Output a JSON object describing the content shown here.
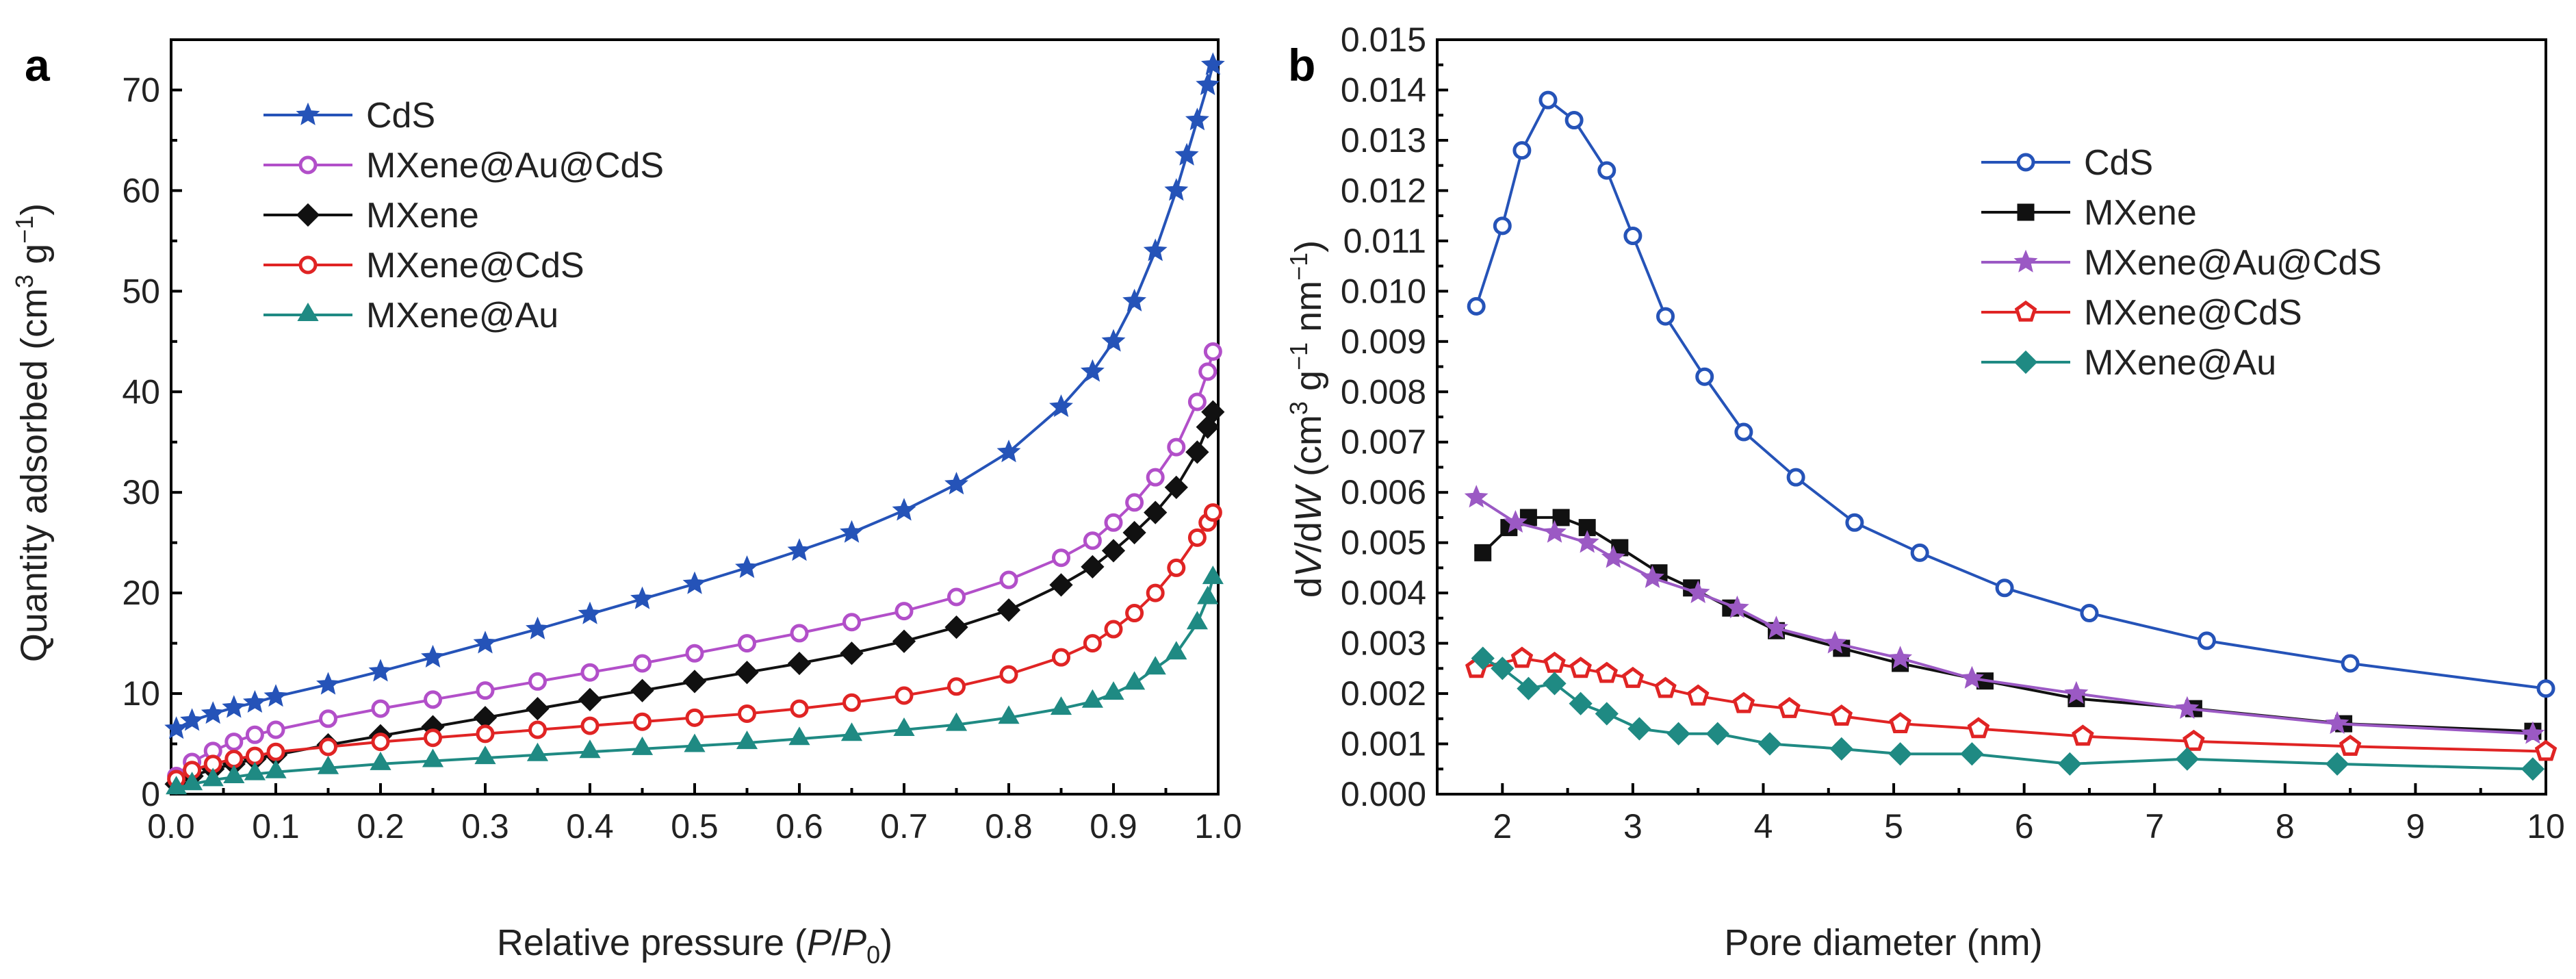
{
  "chart_data": [
    {
      "panel_label": "a",
      "type": "line",
      "xlabel": {
        "pre": "Relative pressure (",
        "p": "P",
        "slash": "/",
        "p0": "P",
        "sub": "0",
        "post": ")"
      },
      "ylabel": {
        "pre": "Quantity adsorbed (cm",
        "sup1": "3",
        "mid": " g",
        "sup2": "−1",
        "post": ")"
      },
      "xlim": [
        0.0,
        1.0
      ],
      "ylim": [
        0,
        75
      ],
      "xticks": [
        "0.0",
        "0.1",
        "0.2",
        "0.3",
        "0.4",
        "0.5",
        "0.6",
        "0.7",
        "0.8",
        "0.9",
        "1.0"
      ],
      "yticks": [
        "0",
        "10",
        "20",
        "30",
        "40",
        "50",
        "60",
        "70"
      ],
      "legend_position": "top-left",
      "series": [
        {
          "name": "CdS",
          "color": "#2553b8",
          "marker": "star",
          "x": [
            0.005,
            0.02,
            0.04,
            0.06,
            0.08,
            0.1,
            0.15,
            0.2,
            0.25,
            0.3,
            0.35,
            0.4,
            0.45,
            0.5,
            0.55,
            0.6,
            0.65,
            0.7,
            0.75,
            0.8,
            0.85,
            0.88,
            0.9,
            0.92,
            0.94,
            0.96,
            0.97,
            0.98,
            0.99,
            0.995
          ],
          "y": [
            6.5,
            7.3,
            8.0,
            8.6,
            9.1,
            9.7,
            10.9,
            12.2,
            13.6,
            15.0,
            16.4,
            17.9,
            19.4,
            20.9,
            22.5,
            24.2,
            26.0,
            28.2,
            30.8,
            34.0,
            38.5,
            42.0,
            45.0,
            49.0,
            54.0,
            60.0,
            63.5,
            67.0,
            70.5,
            72.5
          ]
        },
        {
          "name": "MXene@Au@CdS",
          "color": "#b24fc9",
          "marker": "circle",
          "x": [
            0.005,
            0.02,
            0.04,
            0.06,
            0.08,
            0.1,
            0.15,
            0.2,
            0.25,
            0.3,
            0.35,
            0.4,
            0.45,
            0.5,
            0.55,
            0.6,
            0.65,
            0.7,
            0.75,
            0.8,
            0.85,
            0.88,
            0.9,
            0.92,
            0.94,
            0.96,
            0.98,
            0.99,
            0.995
          ],
          "y": [
            1.8,
            3.2,
            4.3,
            5.2,
            5.9,
            6.4,
            7.5,
            8.5,
            9.4,
            10.3,
            11.2,
            12.1,
            13.0,
            14.0,
            15.0,
            16.0,
            17.1,
            18.2,
            19.6,
            21.3,
            23.5,
            25.2,
            27.0,
            29.0,
            31.5,
            34.5,
            39.0,
            42.0,
            44.0
          ]
        },
        {
          "name": "MXene",
          "color": "#111111",
          "marker": "diamond",
          "x": [
            0.005,
            0.02,
            0.04,
            0.06,
            0.08,
            0.1,
            0.15,
            0.2,
            0.25,
            0.3,
            0.35,
            0.4,
            0.45,
            0.5,
            0.55,
            0.6,
            0.65,
            0.7,
            0.75,
            0.8,
            0.85,
            0.88,
            0.9,
            0.92,
            0.94,
            0.96,
            0.98,
            0.99,
            0.995
          ],
          "y": [
            1.0,
            1.8,
            2.5,
            3.0,
            3.5,
            3.9,
            4.9,
            5.8,
            6.7,
            7.6,
            8.5,
            9.4,
            10.3,
            11.2,
            12.1,
            13.0,
            14.0,
            15.2,
            16.6,
            18.3,
            20.8,
            22.6,
            24.2,
            26.0,
            28.0,
            30.5,
            34.0,
            36.5,
            38.0
          ]
        },
        {
          "name": "MXene@CdS",
          "color": "#e02424",
          "marker": "circle",
          "x": [
            0.005,
            0.02,
            0.04,
            0.06,
            0.08,
            0.1,
            0.15,
            0.2,
            0.25,
            0.3,
            0.35,
            0.4,
            0.45,
            0.5,
            0.55,
            0.6,
            0.65,
            0.7,
            0.75,
            0.8,
            0.85,
            0.88,
            0.9,
            0.92,
            0.94,
            0.96,
            0.98,
            0.99,
            0.995
          ],
          "y": [
            1.5,
            2.4,
            3.0,
            3.5,
            3.8,
            4.2,
            4.7,
            5.2,
            5.6,
            6.0,
            6.4,
            6.8,
            7.2,
            7.6,
            8.0,
            8.5,
            9.1,
            9.8,
            10.7,
            11.9,
            13.6,
            15.0,
            16.4,
            18.0,
            20.0,
            22.5,
            25.5,
            27.0,
            28.0
          ]
        },
        {
          "name": "MXene@Au",
          "color": "#1f8a83",
          "marker": "triangle",
          "x": [
            0.005,
            0.02,
            0.04,
            0.06,
            0.08,
            0.1,
            0.15,
            0.2,
            0.25,
            0.3,
            0.35,
            0.4,
            0.45,
            0.5,
            0.55,
            0.6,
            0.65,
            0.7,
            0.75,
            0.8,
            0.85,
            0.88,
            0.9,
            0.92,
            0.94,
            0.96,
            0.98,
            0.99,
            0.995
          ],
          "y": [
            0.6,
            1.0,
            1.4,
            1.7,
            2.0,
            2.2,
            2.6,
            3.0,
            3.3,
            3.6,
            3.9,
            4.2,
            4.5,
            4.8,
            5.1,
            5.5,
            5.9,
            6.4,
            6.9,
            7.6,
            8.5,
            9.2,
            10.0,
            11.0,
            12.5,
            14.0,
            17.0,
            19.5,
            21.5
          ]
        }
      ]
    },
    {
      "panel_label": "b",
      "type": "line",
      "xlabel": {
        "text": "Pore diameter (nm)"
      },
      "ylabel": {
        "pre": "d",
        "v": "V",
        "slash": "/d",
        "w": "W",
        "mid": " (cm",
        "sup1": "3",
        "mid2": " g",
        "sup2": "−1",
        "mid3": " nm",
        "sup3": "−1",
        "post": ")"
      },
      "xlim": [
        1.5,
        10.0
      ],
      "ylim": [
        0.0,
        0.015
      ],
      "xticks": [
        "2",
        "3",
        "4",
        "5",
        "6",
        "7",
        "8",
        "9",
        "10"
      ],
      "yticks": [
        "0.000",
        "0.001",
        "0.002",
        "0.003",
        "0.004",
        "0.005",
        "0.006",
        "0.007",
        "0.008",
        "0.009",
        "0.010",
        "0.011",
        "0.012",
        "0.013",
        "0.014",
        "0.015"
      ],
      "legend_position": "top-right",
      "series": [
        {
          "name": "CdS",
          "color": "#2553b8",
          "marker": "circle",
          "x": [
            1.8,
            2.0,
            2.15,
            2.35,
            2.55,
            2.8,
            3.0,
            3.25,
            3.55,
            3.85,
            4.25,
            4.7,
            5.2,
            5.85,
            6.5,
            7.4,
            8.5,
            10.0
          ],
          "y": [
            0.0097,
            0.0113,
            0.0128,
            0.0138,
            0.0134,
            0.0124,
            0.0111,
            0.0095,
            0.0083,
            0.0072,
            0.0063,
            0.0054,
            0.0048,
            0.0041,
            0.0036,
            0.00305,
            0.0026,
            0.0021
          ]
        },
        {
          "name": "MXene",
          "color": "#111111",
          "marker": "square",
          "x": [
            1.85,
            2.05,
            2.2,
            2.45,
            2.65,
            2.9,
            3.2,
            3.45,
            3.75,
            4.1,
            4.6,
            5.05,
            5.7,
            6.4,
            7.3,
            8.45,
            9.9
          ],
          "y": [
            0.0048,
            0.0053,
            0.0055,
            0.0055,
            0.0053,
            0.0049,
            0.0044,
            0.0041,
            0.0037,
            0.00325,
            0.0029,
            0.0026,
            0.00225,
            0.0019,
            0.0017,
            0.0014,
            0.00125
          ]
        },
        {
          "name": "MXene@Au@CdS",
          "color": "#9b59c4",
          "marker": "star",
          "x": [
            1.8,
            2.1,
            2.4,
            2.65,
            2.85,
            3.15,
            3.5,
            3.8,
            4.1,
            4.55,
            5.05,
            5.6,
            6.4,
            7.25,
            8.4,
            9.9
          ],
          "y": [
            0.0059,
            0.0054,
            0.0052,
            0.005,
            0.0047,
            0.0043,
            0.004,
            0.0037,
            0.0033,
            0.003,
            0.0027,
            0.0023,
            0.002,
            0.0017,
            0.0014,
            0.0012
          ]
        },
        {
          "name": "MXene@CdS",
          "color": "#e02424",
          "marker": "pentagon",
          "x": [
            1.8,
            2.15,
            2.4,
            2.6,
            2.8,
            3.0,
            3.25,
            3.5,
            3.85,
            4.2,
            4.6,
            5.05,
            5.65,
            6.45,
            7.3,
            8.5,
            10.0
          ],
          "y": [
            0.0025,
            0.0027,
            0.0026,
            0.0025,
            0.0024,
            0.0023,
            0.0021,
            0.00195,
            0.0018,
            0.0017,
            0.00155,
            0.0014,
            0.0013,
            0.00115,
            0.00105,
            0.00095,
            0.00085
          ]
        },
        {
          "name": "MXene@Au",
          "color": "#1f8a83",
          "marker": "diamond",
          "x": [
            1.85,
            2.0,
            2.2,
            2.4,
            2.6,
            2.8,
            3.05,
            3.35,
            3.65,
            4.05,
            4.6,
            5.05,
            5.6,
            6.35,
            7.25,
            8.4,
            9.9
          ],
          "y": [
            0.0027,
            0.0025,
            0.0021,
            0.0022,
            0.0018,
            0.0016,
            0.0013,
            0.0012,
            0.0012,
            0.001,
            0.0009,
            0.0008,
            0.0008,
            0.0006,
            0.0007,
            0.0006,
            0.0005
          ]
        }
      ]
    }
  ]
}
